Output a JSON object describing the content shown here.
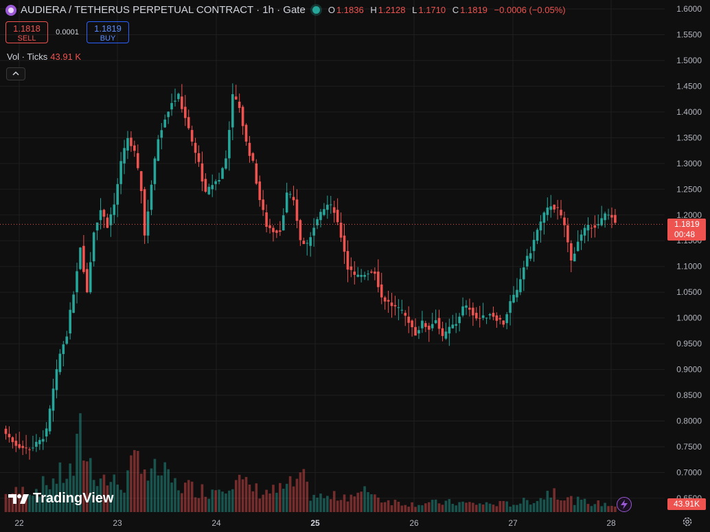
{
  "header": {
    "title": "AUDIERA / TETHERUS PERPETUAL CONTRACT · 1h · Gate",
    "ohlc": {
      "o_label": "O",
      "o": "1.1836",
      "h_label": "H",
      "h": "1.2128",
      "l_label": "L",
      "l": "1.1710",
      "c_label": "C",
      "c": "1.1819",
      "change": "−0.0006 (−0.05%)"
    }
  },
  "trade": {
    "sell_price": "1.1818",
    "sell_label": "SELL",
    "spread": "0.0001",
    "buy_price": "1.1819",
    "buy_label": "BUY"
  },
  "volume": {
    "label": "Vol · Ticks",
    "value": "43.91 K"
  },
  "price_tag": {
    "price": "1.1819",
    "countdown": "00:48"
  },
  "vol_tag": "43.91K",
  "logo_text": "TradingView",
  "colors": {
    "up": "#26a69a",
    "down": "#ef5350",
    "background": "#0f0f0f",
    "grid": "#1f1f1f"
  },
  "icons": [
    "symbol-icon",
    "status-dot-icon",
    "chevron-up-icon",
    "tradingview-logo-icon",
    "lightning-icon",
    "gear-icon"
  ],
  "chart_data": {
    "type": "candlestick",
    "title": "AUDIERA / TETHERUS PERPETUAL CONTRACT · 1h · Gate",
    "y_ticks": [
      "1.6000",
      "1.5500",
      "1.5000",
      "1.4500",
      "1.4000",
      "1.3500",
      "1.3000",
      "1.2500",
      "1.2000",
      "1.1500",
      "1.1000",
      "1.0500",
      "1.0000",
      "0.9500",
      "0.9000",
      "0.8500",
      "0.8000",
      "0.7500",
      "0.7000",
      "0.6500"
    ],
    "x_ticks": [
      "22",
      "23",
      "24",
      "25",
      "26",
      "27",
      "28"
    ],
    "x_tick_bold": "25",
    "ylim": [
      0.64,
      1.6
    ],
    "last_price": 1.1819,
    "grid": true,
    "anchors": [
      [
        0,
        0.775
      ],
      [
        3,
        0.755
      ],
      [
        6,
        0.745
      ],
      [
        8,
        0.75
      ],
      [
        10,
        0.76
      ],
      [
        12,
        0.78
      ],
      [
        14,
        0.86
      ],
      [
        16,
        0.93
      ],
      [
        18,
        0.97
      ],
      [
        20,
        1.05
      ],
      [
        22,
        1.14
      ],
      [
        24,
        1.05
      ],
      [
        26,
        1.17
      ],
      [
        28,
        1.21
      ],
      [
        30,
        1.18
      ],
      [
        32,
        1.22
      ],
      [
        34,
        1.3
      ],
      [
        36,
        1.35
      ],
      [
        38,
        1.32
      ],
      [
        40,
        1.25
      ],
      [
        41,
        1.16
      ],
      [
        43,
        1.26
      ],
      [
        45,
        1.35
      ],
      [
        47,
        1.39
      ],
      [
        49,
        1.42
      ],
      [
        51,
        1.43
      ],
      [
        53,
        1.39
      ],
      [
        55,
        1.34
      ],
      [
        57,
        1.3
      ],
      [
        59,
        1.24
      ],
      [
        61,
        1.26
      ],
      [
        63,
        1.27
      ],
      [
        65,
        1.31
      ],
      [
        67,
        1.43
      ],
      [
        69,
        1.41
      ],
      [
        71,
        1.34
      ],
      [
        73,
        1.3
      ],
      [
        75,
        1.23
      ],
      [
        77,
        1.18
      ],
      [
        79,
        1.17
      ],
      [
        81,
        1.17
      ],
      [
        83,
        1.24
      ],
      [
        85,
        1.23
      ],
      [
        87,
        1.15
      ],
      [
        89,
        1.14
      ],
      [
        91,
        1.18
      ],
      [
        93,
        1.2
      ],
      [
        95,
        1.22
      ],
      [
        97,
        1.21
      ],
      [
        99,
        1.16
      ],
      [
        101,
        1.1
      ],
      [
        103,
        1.08
      ],
      [
        105,
        1.08
      ],
      [
        107,
        1.09
      ],
      [
        109,
        1.09
      ],
      [
        111,
        1.04
      ],
      [
        113,
        1.03
      ],
      [
        115,
        1.02
      ],
      [
        117,
        1.01
      ],
      [
        119,
        0.995
      ],
      [
        121,
        0.97
      ],
      [
        123,
        0.99
      ],
      [
        125,
        0.98
      ],
      [
        127,
        1.0
      ],
      [
        129,
        0.96
      ],
      [
        131,
        0.98
      ],
      [
        133,
        0.99
      ],
      [
        135,
        1.02
      ],
      [
        137,
        1.02
      ],
      [
        139,
        1.0
      ],
      [
        141,
        1.0
      ],
      [
        143,
        1.01
      ],
      [
        145,
        1.0
      ],
      [
        147,
        0.99
      ],
      [
        149,
        1.03
      ],
      [
        151,
        1.05
      ],
      [
        153,
        1.1
      ],
      [
        155,
        1.13
      ],
      [
        157,
        1.17
      ],
      [
        159,
        1.2
      ],
      [
        161,
        1.22
      ],
      [
        163,
        1.21
      ],
      [
        165,
        1.18
      ],
      [
        167,
        1.11
      ],
      [
        169,
        1.15
      ],
      [
        171,
        1.17
      ],
      [
        173,
        1.18
      ],
      [
        175,
        1.18
      ],
      [
        177,
        1.2
      ],
      [
        179,
        1.2
      ],
      [
        180,
        1.18
      ]
    ],
    "volume_anchors": [
      [
        0,
        25
      ],
      [
        10,
        35
      ],
      [
        15,
        50
      ],
      [
        20,
        60
      ],
      [
        22,
        110
      ],
      [
        24,
        80
      ],
      [
        26,
        60
      ],
      [
        30,
        45
      ],
      [
        35,
        40
      ],
      [
        38,
        70
      ],
      [
        40,
        90
      ],
      [
        42,
        50
      ],
      [
        45,
        60
      ],
      [
        50,
        40
      ],
      [
        55,
        35
      ],
      [
        60,
        30
      ],
      [
        65,
        45
      ],
      [
        68,
        50
      ],
      [
        70,
        40
      ],
      [
        75,
        30
      ],
      [
        80,
        30
      ],
      [
        85,
        40
      ],
      [
        88,
        45
      ],
      [
        90,
        25
      ],
      [
        95,
        20
      ],
      [
        100,
        25
      ],
      [
        105,
        25
      ],
      [
        108,
        35
      ],
      [
        110,
        20
      ],
      [
        115,
        15
      ],
      [
        120,
        12
      ],
      [
        130,
        14
      ],
      [
        140,
        12
      ],
      [
        150,
        12
      ],
      [
        158,
        20
      ],
      [
        162,
        35
      ],
      [
        165,
        20
      ],
      [
        170,
        15
      ],
      [
        180,
        10
      ]
    ],
    "volume_max_k": 180
  }
}
